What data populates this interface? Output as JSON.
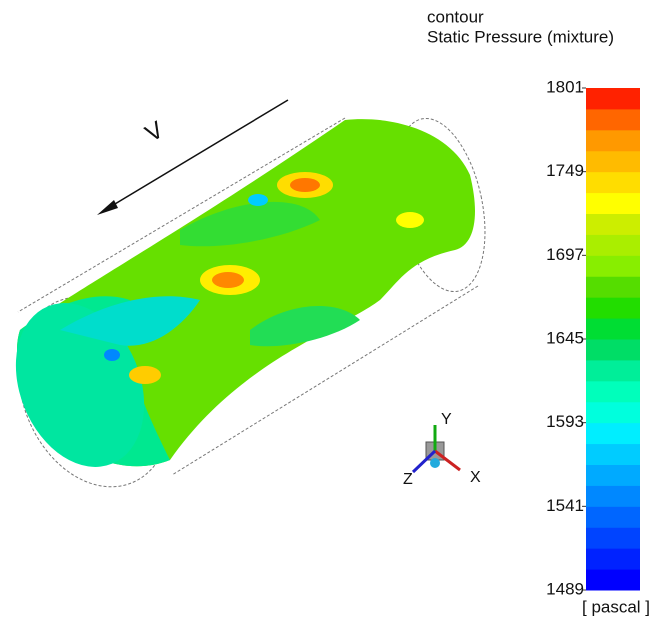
{
  "legend": {
    "title": "contour",
    "subtitle": "Static Pressure (mixture)",
    "unit": "[ pascal ]",
    "min": 1489,
    "max": 1801,
    "ticks": [
      1489,
      1541,
      1593,
      1645,
      1697,
      1749,
      1801
    ],
    "colors": [
      "#0000ff",
      "#0022ff",
      "#0044ff",
      "#0066ff",
      "#0088ff",
      "#00aaff",
      "#00ccff",
      "#00eeff",
      "#00ffdd",
      "#00ffbb",
      "#00ee99",
      "#00dd66",
      "#00dd33",
      "#22dd00",
      "#55dd00",
      "#88ee00",
      "#aaee00",
      "#ccee00",
      "#ffff00",
      "#ffdd00",
      "#ffbb00",
      "#ff9900",
      "#ff6600",
      "#ff2200"
    ]
  },
  "flow_label": "V",
  "axes": {
    "x": "X",
    "y": "Y",
    "z": "Z"
  }
}
